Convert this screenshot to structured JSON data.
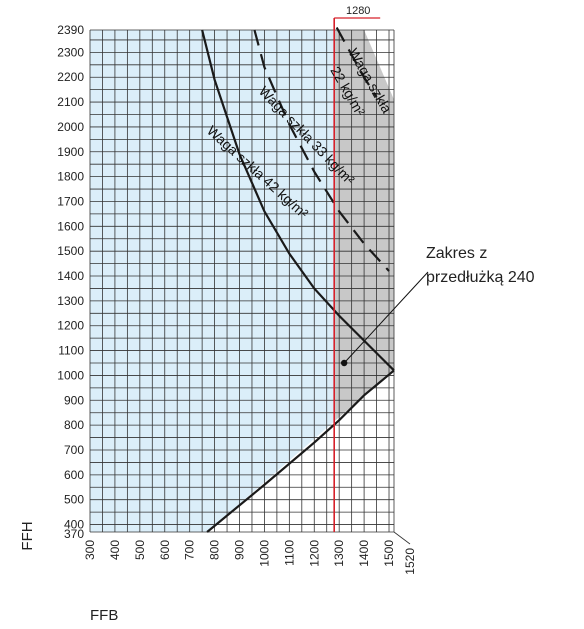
{
  "chart_data": {
    "type": "line",
    "xlabel": "FFB",
    "ylabel": "FFH",
    "xlim": [
      300,
      1520
    ],
    "ylim": [
      370,
      2390
    ],
    "x_ticks": [
      300,
      400,
      500,
      600,
      700,
      800,
      900,
      1000,
      1100,
      1200,
      1300,
      1400,
      1500
    ],
    "x_end_label": "1520",
    "y_ticks": [
      400,
      500,
      600,
      700,
      800,
      900,
      1000,
      1100,
      1200,
      1300,
      1400,
      1500,
      1600,
      1700,
      1800,
      1900,
      2000,
      2100,
      2200,
      2300,
      2390
    ],
    "y_start_label": "370",
    "marker_x": 1280,
    "marker_label": "1280",
    "series": [
      {
        "label": "Waga szkła 42 kg/m²",
        "style": "solid",
        "points": [
          [
            750,
            2390
          ],
          [
            800,
            2190
          ],
          [
            900,
            1890
          ],
          [
            1000,
            1660
          ],
          [
            1100,
            1490
          ],
          [
            1200,
            1350
          ],
          [
            1300,
            1240
          ],
          [
            1400,
            1140
          ],
          [
            1520,
            1020
          ]
        ]
      },
      {
        "label": "Waga szkła 33 kg/m²",
        "style": "dashed",
        "points": [
          [
            960,
            2390
          ],
          [
            1000,
            2240
          ],
          [
            1100,
            2010
          ],
          [
            1200,
            1820
          ],
          [
            1300,
            1660
          ],
          [
            1400,
            1530
          ],
          [
            1500,
            1420
          ]
        ]
      },
      {
        "label": "Waga szkła 22 kg/m²",
        "style": "dashed",
        "points": [
          [
            1290,
            2400
          ],
          [
            1350,
            2290
          ],
          [
            1400,
            2200
          ],
          [
            1450,
            2120
          ]
        ]
      },
      {
        "label": "",
        "style": "solid",
        "points": [
          [
            770,
            370
          ],
          [
            1000,
            560
          ],
          [
            1200,
            730
          ],
          [
            1300,
            820
          ],
          [
            1400,
            920
          ],
          [
            1520,
            1020
          ]
        ]
      }
    ],
    "regions": [
      {
        "name": "base-range",
        "color": "#dbeef9",
        "polygon": [
          [
            300,
            370
          ],
          [
            770,
            370
          ],
          [
            1280,
            815
          ],
          [
            1280,
            2390
          ],
          [
            300,
            2390
          ]
        ]
      },
      {
        "name": "Zakres z przedłużką 240",
        "color": "#c8c8c8",
        "polygon": [
          [
            1280,
            815
          ],
          [
            1520,
            1020
          ],
          [
            1520,
            2110
          ],
          [
            1400,
            2390
          ],
          [
            1280,
            2390
          ]
        ]
      }
    ],
    "annotation": {
      "lines": [
        "Zakres z",
        "przedłużką 240"
      ],
      "point": [
        1320,
        1050
      ]
    },
    "curve_labels": [
      "Waga szkła",
      "22 kg/m²",
      "Waga szkła 33 kg/m²",
      "Waga szkła 42 kg/m²"
    ]
  }
}
